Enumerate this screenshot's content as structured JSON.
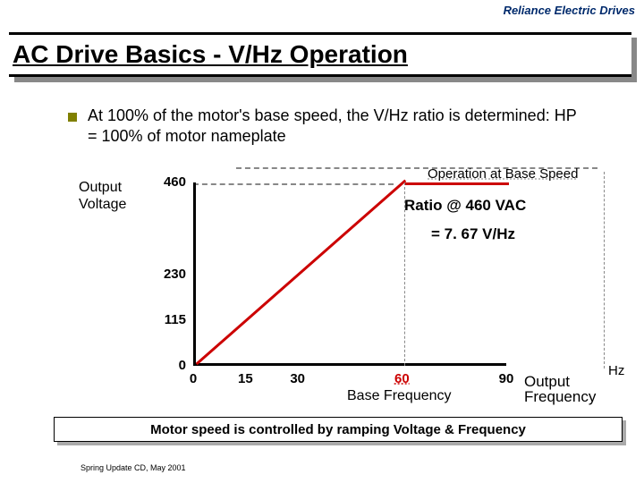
{
  "logo": {
    "part1": "Reliance Electric",
    "part2": " Drives"
  },
  "title": "AC Drive Basics - V/Hz Operation",
  "intro": "At 100% of the motor's base speed, the V/Hz ratio is determined:  HP = 100% of motor nameplate",
  "chart": {
    "type": "line",
    "ylabel": "Output Voltage",
    "yticks": [
      {
        "v": 460,
        "label": "460"
      },
      {
        "v": 230,
        "label": "230"
      },
      {
        "v": 115,
        "label": "115"
      },
      {
        "v": 0,
        "label": "0"
      }
    ],
    "ymax": 460,
    "xticks": [
      {
        "v": 0,
        "label": "0"
      },
      {
        "v": 15,
        "label": "15"
      },
      {
        "v": 30,
        "label": "30"
      },
      {
        "v": 60,
        "label": "60",
        "highlight": true
      },
      {
        "v": 90,
        "label": "90"
      }
    ],
    "xmax": 90,
    "line_color": "#cc0000",
    "knee_x": 60,
    "axis_color": "#000000",
    "callout": "Operation at Base Speed",
    "ratio_line1": "Ratio @ 460 VAC",
    "ratio_line2": "= 7. 67 V/Hz",
    "base_freq_label": "Base Frequency",
    "output_freq_label": "Output Frequency",
    "hz_label": "Hz"
  },
  "conclusion": "Motor speed is controlled by  ramping Voltage & Frequency",
  "footer": "Spring Update CD, May 2001"
}
